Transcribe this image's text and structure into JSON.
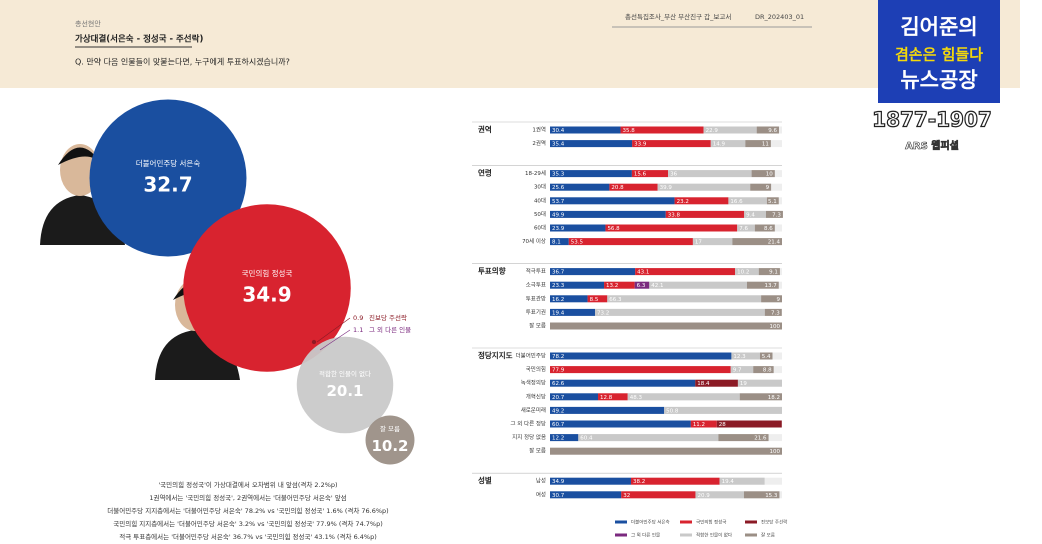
{
  "header": {
    "section": "총선현안",
    "title": "가상대결(서은숙 - 정성국 - 주선락)",
    "question": "Q. 만약 다음 인물들이 맞붙는다면, 누구에게 투표하시겠습니까?",
    "report": "총선특집조사_부산 부산진구 갑_보고서",
    "code": "DR_202403_01"
  },
  "logo": {
    "line1": "김어준의",
    "line2": "겸손은 힘들다",
    "line3": "뉴스공장",
    "phone": "1877-1907",
    "sub": "ARS 웹피셜"
  },
  "notes": [
    "'국민의힘 정성국'이 가상대결에서 오차범위 내 앞섬(격차 2.2%p)",
    "1권역에서는 '국민의힘 정성국', 2권역에서는 '더불어민주당 서은숙' 앞섬",
    "더불어민주당 지지층에서는 '더불어민주당 서은숙' 78.2% vs '국민의힘 정성국' 1.6% (격차 76.6%p)",
    "국민의힘 지지층에서는 '더불어민주당 서은숙' 3.2% vs '국민의힘 정성국' 77.9% (격차 74.7%p)",
    "적극 투표층에서는 '더불어민주당 서은숙' 36.7% vs '국민의힘 정성국' 43.1% (격차 6.4%p)"
  ],
  "chart_data": [
    {
      "type": "bubble",
      "categories": [
        "더불어민주당 서은숙",
        "국민의힘 정성국",
        "진보당 주선락",
        "그 외 다른 인물",
        "적합한 인물이 없다",
        "잘 모름"
      ],
      "values": [
        32.7,
        34.9,
        0.9,
        1.1,
        20.1,
        10.2
      ],
      "colors": [
        "#1a4fa0",
        "#d8232f",
        "#8b1a25",
        "#7b2a7f",
        "#c9c9c9",
        "#9b8f86"
      ]
    },
    {
      "type": "stacked_bar",
      "xlim": [
        0,
        100
      ],
      "groups": [
        {
          "name": "권역",
          "categories": [
            "1권역",
            "2권역"
          ]
        },
        {
          "name": "연령",
          "categories": [
            "18-29세",
            "30대",
            "40대",
            "50대",
            "60대",
            "70세 이상"
          ]
        },
        {
          "name": "투표의향",
          "categories": [
            "적극투표",
            "소극투표",
            "투표관망",
            "투표기권",
            "잘 모름"
          ]
        },
        {
          "name": "정당지지도",
          "categories": [
            "더불어민주당",
            "국민의힘",
            "녹색정의당",
            "개혁신당",
            "새로운미래",
            "그 외 다른 정당",
            "지지 정당 없음",
            "잘 모름"
          ]
        },
        {
          "name": "성별",
          "categories": [
            "남성",
            "여성"
          ]
        }
      ],
      "series": [
        {
          "name": "더불어민주당 서은숙",
          "color": "#1a4fa0",
          "values": [
            30.4,
            35.4,
            35.3,
            25.6,
            53.7,
            49.9,
            23.9,
            8.1,
            36.7,
            23.3,
            16.2,
            19.4,
            null,
            78.2,
            null,
            62.6,
            20.7,
            49.2,
            60.7,
            12.2,
            null,
            34.9,
            30.7
          ]
        },
        {
          "name": "국민의힘 정성국",
          "color": "#d8232f",
          "values": [
            35.8,
            33.9,
            15.6,
            20.8,
            23.2,
            33.8,
            56.8,
            53.5,
            43.1,
            13.2,
            8.5,
            null,
            null,
            null,
            77.9,
            null,
            12.8,
            null,
            11.2,
            null,
            null,
            38.2,
            32.0
          ]
        },
        {
          "name": "진보당 주선락",
          "color": "#8b1a25",
          "values": [
            null,
            null,
            null,
            null,
            null,
            null,
            null,
            null,
            null,
            null,
            null,
            null,
            null,
            null,
            null,
            18.4,
            null,
            null,
            28.0,
            null,
            null,
            null,
            null
          ]
        },
        {
          "name": "그 외 다른 인물",
          "color": "#7b2a7f",
          "values": [
            null,
            null,
            null,
            null,
            null,
            null,
            null,
            null,
            null,
            6.3,
            null,
            null,
            null,
            null,
            null,
            null,
            null,
            null,
            null,
            null,
            null,
            null,
            null
          ]
        },
        {
          "name": "적합한 인물이 없다",
          "color": "#c9c9c9",
          "values": [
            22.9,
            14.9,
            36.0,
            39.9,
            16.6,
            9.4,
            7.6,
            17.0,
            10.2,
            42.1,
            66.3,
            73.2,
            null,
            12.3,
            9.7,
            19.0,
            48.3,
            50.8,
            null,
            60.4,
            null,
            19.4,
            20.9
          ]
        },
        {
          "name": "잘 모름",
          "color": "#9b8f86",
          "values": [
            9.6,
            11.0,
            10.0,
            9.0,
            5.1,
            7.3,
            8.6,
            21.4,
            9.1,
            13.7,
            9.0,
            7.3,
            100.0,
            5.4,
            8.8,
            null,
            18.2,
            null,
            null,
            21.6,
            100.0,
            null,
            15.3
          ]
        }
      ]
    }
  ]
}
